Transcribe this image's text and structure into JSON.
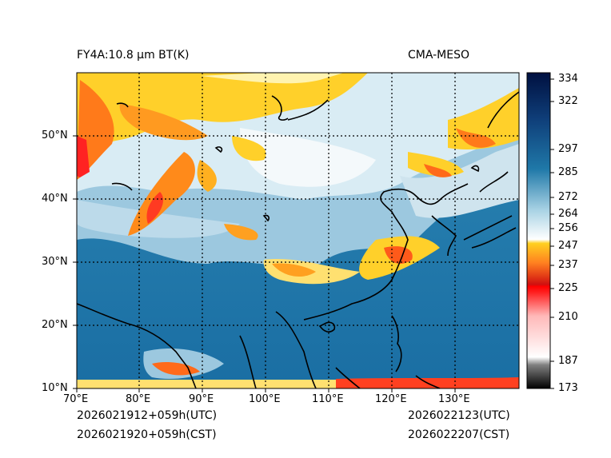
{
  "title_left": "FY4A:10.8 µm BT(K)",
  "title_right": "CMA-MESO",
  "footer": {
    "init_utc": "2026021912+059h(UTC)",
    "init_cst": "2026021920+059h(CST)",
    "valid_utc": "2026022123(UTC)",
    "valid_cst": "2026022207(CST)"
  },
  "lat_labels": [
    "50°N",
    "40°N",
    "30°N",
    "20°N",
    "10°N"
  ],
  "lon_labels": [
    "70°E",
    "80°E",
    "90°E",
    "100°E",
    "110°E",
    "120°E",
    "130°E"
  ],
  "colorbar": {
    "ticks": [
      "334",
      "322",
      "297",
      "285",
      "272",
      "264",
      "256",
      "247",
      "237",
      "225",
      "210",
      "187",
      "173"
    ],
    "stops": [
      {
        "v": 173,
        "c": "#000000"
      },
      {
        "v": 185,
        "c": "#808080"
      },
      {
        "v": 189,
        "c": "#ffffff"
      },
      {
        "v": 210,
        "c": "#ffb8b8"
      },
      {
        "v": 222,
        "c": "#ff2020"
      },
      {
        "v": 225,
        "c": "#ff0000"
      },
      {
        "v": 226,
        "c": "#d01010"
      },
      {
        "v": 237,
        "c": "#ff8020"
      },
      {
        "v": 247,
        "c": "#ffd020"
      },
      {
        "v": 249,
        "c": "#ffffff"
      },
      {
        "v": 264,
        "c": "#a8d2e4"
      },
      {
        "v": 285,
        "c": "#1f78a8"
      },
      {
        "v": 310,
        "c": "#0f3f7a"
      },
      {
        "v": 334,
        "c": "#001040"
      }
    ]
  }
}
